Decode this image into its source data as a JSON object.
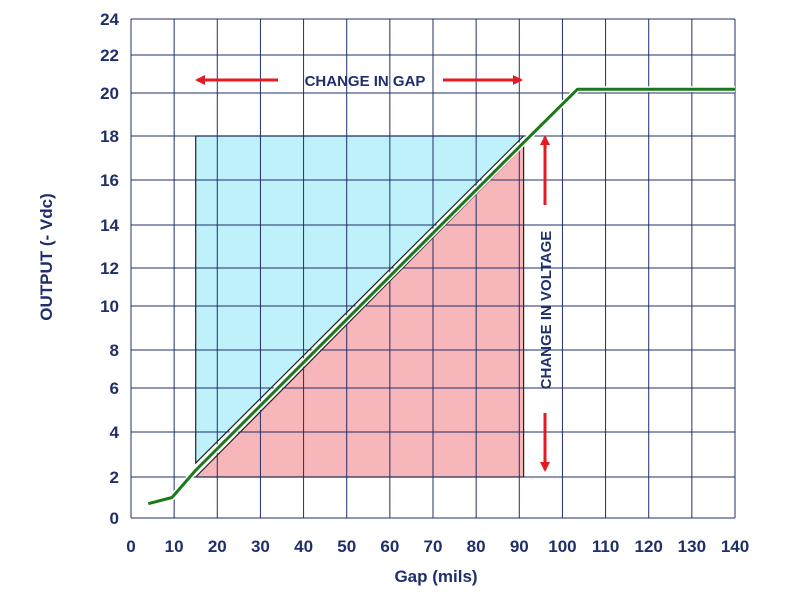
{
  "chart_data": {
    "type": "line",
    "title": "",
    "xlabel": "Gap (mils)",
    "ylabel": "OUTPUT (- Vdc)",
    "xlim": [
      0,
      140
    ],
    "ylim": [
      0,
      24
    ],
    "x_ticks": [
      0,
      10,
      20,
      30,
      40,
      50,
      60,
      70,
      80,
      90,
      100,
      110,
      120,
      130,
      140
    ],
    "y_ticks": [
      0,
      2,
      4,
      6,
      8,
      10,
      12,
      14,
      16,
      18,
      20,
      22,
      24
    ],
    "grid": true,
    "series": [
      {
        "name": "Output",
        "color": "#1a7a1a",
        "x": [
          4,
          9.5,
          15,
          91.5,
          103.5,
          140
        ],
        "y": [
          0.7,
          1.0,
          2.3,
          17.8,
          20.2,
          20.2
        ]
      }
    ],
    "regions": {
      "gap_range": [
        15,
        91
      ],
      "voltage_range": [
        2,
        18
      ],
      "upper_color": "#bff1fb",
      "lower_color": "#f7b6ba"
    },
    "annotations": {
      "change_in_gap": "CHANGE IN GAP",
      "change_in_voltage": "CHANGE IN VOLTAGE",
      "arrow_color": "#e31b23"
    }
  }
}
